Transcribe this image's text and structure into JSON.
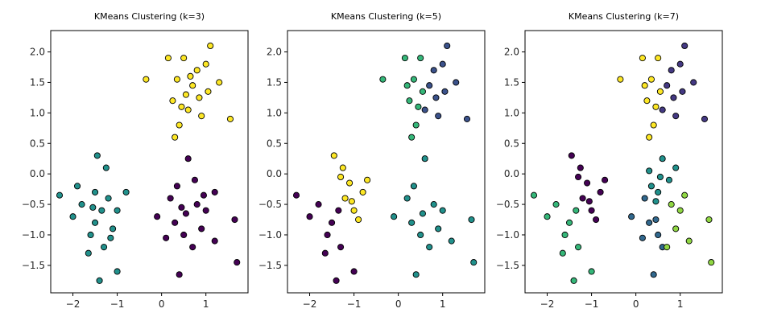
{
  "chart_data": [
    {
      "type": "scatter",
      "title": "KMeans Clustering (k=3)",
      "xlim": [
        -2.5,
        1.95
      ],
      "ylim": [
        -1.95,
        2.35
      ],
      "xticks": [
        -2,
        -1,
        0,
        1
      ],
      "yticks": [
        -1.5,
        -1.0,
        -0.5,
        0.0,
        0.5,
        1.0,
        1.5,
        2.0
      ],
      "xtick_labels": [
        "−2",
        "−1",
        "0",
        "1"
      ],
      "ytick_labels": [
        "−1.5",
        "−1.0",
        "−0.5",
        "0.0",
        "0.5",
        "1.0",
        "1.5",
        "2.0"
      ],
      "grid": false,
      "series": [
        {
          "color": "#fde725",
          "points": [
            [
              0.55,
              1.3
            ],
            [
              0.35,
              1.55
            ],
            [
              0.8,
              1.7
            ],
            [
              0.6,
              1.05
            ],
            [
              0.25,
              1.2
            ],
            [
              1.05,
              1.35
            ],
            [
              0.4,
              0.8
            ],
            [
              0.9,
              0.95
            ],
            [
              0.15,
              1.9
            ],
            [
              1.1,
              2.1
            ],
            [
              0.7,
              1.45
            ],
            [
              0.5,
              1.9
            ],
            [
              -0.35,
              1.55
            ],
            [
              1.55,
              0.9
            ],
            [
              1.3,
              1.5
            ],
            [
              0.3,
              0.6
            ],
            [
              0.85,
              1.25
            ],
            [
              0.65,
              1.6
            ],
            [
              0.45,
              1.1
            ],
            [
              1.0,
              1.8
            ]
          ]
        },
        {
          "color": "#21918c",
          "points": [
            [
              -1.35,
              -0.6
            ],
            [
              -1.5,
              -0.8
            ],
            [
              -1.2,
              -0.4
            ],
            [
              -1.6,
              -1.0
            ],
            [
              -1.1,
              -0.9
            ],
            [
              -1.8,
              -0.5
            ],
            [
              -1.3,
              -1.2
            ],
            [
              -1.5,
              -0.3
            ],
            [
              -1.0,
              -0.6
            ],
            [
              -2.3,
              -0.35
            ],
            [
              -1.45,
              0.3
            ],
            [
              -1.4,
              -1.75
            ],
            [
              -1.0,
              -1.6
            ],
            [
              -2.0,
              -0.7
            ],
            [
              -1.25,
              0.1
            ],
            [
              -1.65,
              -1.3
            ],
            [
              -0.8,
              -0.3
            ],
            [
              -1.9,
              -0.2
            ],
            [
              -1.15,
              -1.05
            ],
            [
              -1.55,
              -0.55
            ]
          ]
        },
        {
          "color": "#440154",
          "points": [
            [
              0.55,
              -0.65
            ],
            [
              0.3,
              -0.8
            ],
            [
              0.8,
              -0.5
            ],
            [
              0.5,
              -1.0
            ],
            [
              0.9,
              -0.9
            ],
            [
              0.2,
              -0.4
            ],
            [
              0.7,
              -1.2
            ],
            [
              0.35,
              -0.2
            ],
            [
              1.0,
              -0.6
            ],
            [
              1.65,
              -0.75
            ],
            [
              0.6,
              0.25
            ],
            [
              0.4,
              -1.65
            ],
            [
              1.2,
              -1.1
            ],
            [
              -0.1,
              -0.7
            ],
            [
              0.75,
              -0.1
            ],
            [
              1.7,
              -1.45
            ],
            [
              0.1,
              -1.05
            ],
            [
              0.95,
              -0.35
            ],
            [
              1.2,
              -0.3
            ],
            [
              0.45,
              -0.55
            ]
          ]
        }
      ]
    },
    {
      "type": "scatter",
      "title": "KMeans Clustering (k=5)",
      "xlim": [
        -2.5,
        1.95
      ],
      "ylim": [
        -1.95,
        2.35
      ],
      "xticks": [
        -2,
        -1,
        0,
        1
      ],
      "yticks": [
        -1.5,
        -1.0,
        -0.5,
        0.0,
        0.5,
        1.0,
        1.5,
        2.0
      ],
      "xtick_labels": [
        "−2",
        "−1",
        "0",
        "1"
      ],
      "ytick_labels": [
        "−1.5",
        "−1.0",
        "−0.5",
        "0.0",
        "0.5",
        "1.0",
        "1.5",
        "2.0"
      ],
      "grid": false,
      "series": [
        {
          "color": "#35b779",
          "points": [
            [
              0.35,
              1.55
            ],
            [
              0.25,
              1.2
            ],
            [
              0.4,
              0.8
            ],
            [
              0.15,
              1.9
            ],
            [
              0.5,
              1.9
            ],
            [
              -0.35,
              1.55
            ],
            [
              0.3,
              0.6
            ],
            [
              0.45,
              1.1
            ],
            [
              0.2,
              1.45
            ],
            [
              0.55,
              1.35
            ]
          ]
        },
        {
          "color": "#3b528b",
          "points": [
            [
              0.8,
              1.7
            ],
            [
              0.6,
              1.05
            ],
            [
              1.05,
              1.35
            ],
            [
              0.9,
              0.95
            ],
            [
              1.1,
              2.1
            ],
            [
              0.7,
              1.45
            ],
            [
              1.55,
              0.9
            ],
            [
              1.3,
              1.5
            ],
            [
              0.85,
              1.25
            ],
            [
              1.0,
              1.8
            ]
          ]
        },
        {
          "color": "#fde725",
          "points": [
            [
              -1.2,
              -0.4
            ],
            [
              -1.25,
              0.1
            ],
            [
              -0.8,
              -0.3
            ],
            [
              -1.0,
              -0.6
            ],
            [
              -1.45,
              0.3
            ],
            [
              -1.1,
              -0.15
            ],
            [
              -0.9,
              -0.75
            ],
            [
              -1.3,
              -0.05
            ],
            [
              -0.7,
              -0.1
            ],
            [
              -1.05,
              -0.45
            ]
          ]
        },
        {
          "color": "#440154",
          "points": [
            [
              -1.35,
              -0.6
            ],
            [
              -1.5,
              -0.8
            ],
            [
              -1.6,
              -1.0
            ],
            [
              -1.8,
              -0.5
            ],
            [
              -1.3,
              -1.2
            ],
            [
              -2.3,
              -0.35
            ],
            [
              -1.4,
              -1.75
            ],
            [
              -1.0,
              -1.6
            ],
            [
              -2.0,
              -0.7
            ],
            [
              -1.65,
              -1.3
            ]
          ]
        },
        {
          "color": "#21918c",
          "points": [
            [
              0.55,
              -0.65
            ],
            [
              0.3,
              -0.8
            ],
            [
              0.8,
              -0.5
            ],
            [
              0.5,
              -1.0
            ],
            [
              0.9,
              -0.9
            ],
            [
              0.2,
              -0.4
            ],
            [
              0.7,
              -1.2
            ],
            [
              0.35,
              -0.2
            ],
            [
              1.0,
              -0.6
            ],
            [
              1.65,
              -0.75
            ],
            [
              0.6,
              0.25
            ],
            [
              0.4,
              -1.65
            ],
            [
              1.2,
              -1.1
            ],
            [
              -0.1,
              -0.7
            ],
            [
              1.7,
              -1.45
            ]
          ]
        }
      ]
    },
    {
      "type": "scatter",
      "title": "KMeans Clustering (k=7)",
      "xlim": [
        -2.5,
        1.95
      ],
      "ylim": [
        -1.95,
        2.35
      ],
      "xticks": [
        -2,
        -1,
        0,
        1
      ],
      "yticks": [
        -1.5,
        -1.0,
        -0.5,
        0.0,
        0.5,
        1.0,
        1.5,
        2.0
      ],
      "xtick_labels": [
        "−2",
        "−1",
        "0",
        "1"
      ],
      "ytick_labels": [
        "−1.5",
        "−1.0",
        "−0.5",
        "0.0",
        "0.5",
        "1.0",
        "1.5",
        "2.0"
      ],
      "grid": false,
      "series": [
        {
          "color": "#fde725",
          "points": [
            [
              0.35,
              1.55
            ],
            [
              0.25,
              1.2
            ],
            [
              0.4,
              0.8
            ],
            [
              0.15,
              1.9
            ],
            [
              0.5,
              1.9
            ],
            [
              -0.35,
              1.55
            ],
            [
              0.3,
              0.6
            ],
            [
              0.45,
              1.1
            ],
            [
              0.2,
              1.45
            ],
            [
              0.55,
              1.35
            ]
          ]
        },
        {
          "color": "#443983",
          "points": [
            [
              0.8,
              1.7
            ],
            [
              0.6,
              1.05
            ],
            [
              1.05,
              1.35
            ],
            [
              0.9,
              0.95
            ],
            [
              1.1,
              2.1
            ],
            [
              0.7,
              1.45
            ],
            [
              1.55,
              0.9
            ],
            [
              1.3,
              1.5
            ],
            [
              0.85,
              1.25
            ],
            [
              1.0,
              1.8
            ]
          ]
        },
        {
          "color": "#440154",
          "points": [
            [
              -1.2,
              -0.4
            ],
            [
              -1.25,
              0.1
            ],
            [
              -0.8,
              -0.3
            ],
            [
              -1.0,
              -0.6
            ],
            [
              -1.45,
              0.3
            ],
            [
              -1.1,
              -0.15
            ],
            [
              -0.9,
              -0.75
            ],
            [
              -1.3,
              -0.05
            ],
            [
              -0.7,
              -0.1
            ],
            [
              -1.05,
              -0.45
            ]
          ]
        },
        {
          "color": "#35b779",
          "points": [
            [
              -1.35,
              -0.6
            ],
            [
              -1.5,
              -0.8
            ],
            [
              -1.6,
              -1.0
            ],
            [
              -1.8,
              -0.5
            ],
            [
              -1.3,
              -1.2
            ],
            [
              -2.3,
              -0.35
            ],
            [
              -1.4,
              -1.75
            ],
            [
              -1.0,
              -1.6
            ],
            [
              -2.0,
              -0.7
            ],
            [
              -1.65,
              -1.3
            ]
          ]
        },
        {
          "color": "#21918c",
          "points": [
            [
              0.5,
              -0.3
            ],
            [
              0.6,
              0.25
            ],
            [
              0.35,
              -0.2
            ],
            [
              0.55,
              -0.05
            ],
            [
              0.75,
              -0.1
            ],
            [
              0.45,
              -0.45
            ],
            [
              0.9,
              0.1
            ],
            [
              0.3,
              0.05
            ]
          ]
        },
        {
          "color": "#31688e",
          "points": [
            [
              0.3,
              -0.8
            ],
            [
              0.5,
              -1.0
            ],
            [
              0.2,
              -0.4
            ],
            [
              0.4,
              -1.65
            ],
            [
              -0.1,
              -0.7
            ],
            [
              0.6,
              -1.2
            ],
            [
              0.15,
              -1.05
            ],
            [
              0.45,
              -0.75
            ]
          ]
        },
        {
          "color": "#90d743",
          "points": [
            [
              0.8,
              -0.5
            ],
            [
              0.9,
              -0.9
            ],
            [
              1.0,
              -0.6
            ],
            [
              1.65,
              -0.75
            ],
            [
              1.2,
              -1.1
            ],
            [
              1.7,
              -1.45
            ],
            [
              0.7,
              -1.2
            ],
            [
              1.1,
              -0.35
            ]
          ]
        }
      ]
    }
  ]
}
